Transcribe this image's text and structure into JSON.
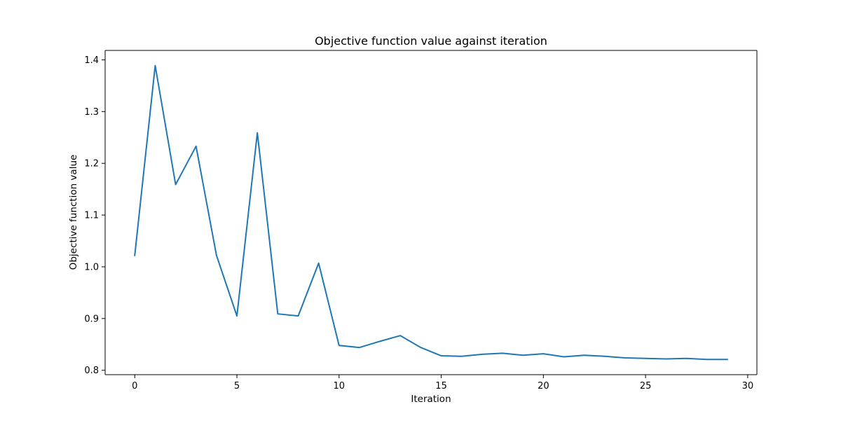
{
  "chart_data": {
    "type": "line",
    "title": "Objective function value against iteration",
    "xlabel": "Iteration",
    "ylabel": "Objective function value",
    "xlim": [
      -1.45,
      30.45
    ],
    "ylim": [
      0.7915,
      1.4182
    ],
    "xticks": [
      0,
      5,
      10,
      15,
      20,
      25,
      30
    ],
    "yticks": [
      0.8,
      0.9,
      1.0,
      1.1,
      1.2,
      1.3,
      1.4
    ],
    "ytick_labels": [
      "0.8",
      "0.9",
      "1.0",
      "1.1",
      "1.2",
      "1.3",
      "1.4"
    ],
    "grid": false,
    "legend": "none",
    "series": [
      {
        "color": "#1f77b4",
        "x": [
          0,
          1,
          2,
          3,
          4,
          5,
          6,
          7,
          8,
          9,
          10,
          11,
          12,
          13,
          14,
          15,
          16,
          17,
          18,
          19,
          20,
          21,
          22,
          23,
          24,
          25,
          26,
          27,
          28,
          29
        ],
        "y": [
          1.022,
          1.389,
          1.159,
          1.233,
          1.022,
          0.905,
          1.259,
          0.909,
          0.905,
          1.007,
          0.848,
          0.844,
          0.856,
          0.867,
          0.844,
          0.828,
          0.827,
          0.831,
          0.833,
          0.829,
          0.832,
          0.826,
          0.829,
          0.827,
          0.824,
          0.823,
          0.822,
          0.823,
          0.821,
          0.821
        ]
      }
    ]
  }
}
